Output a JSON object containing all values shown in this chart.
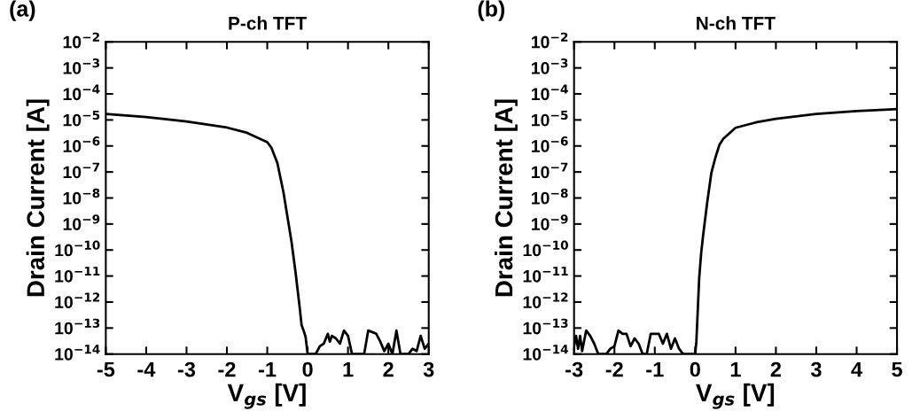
{
  "chart_data": [
    {
      "type": "line",
      "title": "P-ch TFT",
      "xlabel": "V$_{gs}$ [V]",
      "ylabel": "Drain Current [A]",
      "annotations": [
        "(a)"
      ],
      "log": "y",
      "grid": false,
      "marker": "none",
      "line_style": "solid",
      "xlim": [
        -5,
        3
      ],
      "xticks": [
        -5,
        -4,
        -3,
        -2,
        -1,
        0,
        1,
        2,
        3
      ],
      "ylim": [
        1e-14,
        0.01
      ],
      "yticks": [
        {
          "value": 1e-14,
          "label": "10$^{−14}$"
        },
        {
          "value": 1e-13,
          "label": "10$^{−13}$"
        },
        {
          "value": 1e-12,
          "label": "10$^{−12}$"
        },
        {
          "value": 1e-11,
          "label": "10$^{−11}$"
        },
        {
          "value": 1e-10,
          "label": "10$^{−10}$"
        },
        {
          "value": 1e-09,
          "label": "10$^{−9}$"
        },
        {
          "value": 1e-08,
          "label": "10$^{−8}$"
        },
        {
          "value": 1e-07,
          "label": "10$^{−7}$"
        },
        {
          "value": 1e-06,
          "label": "10$^{−6}$"
        },
        {
          "value": 1e-05,
          "label": "10$^{−5}$"
        },
        {
          "value": 0.0001,
          "label": "10$^{−4}$"
        },
        {
          "value": 0.001,
          "label": "10$^{−3}$"
        },
        {
          "value": 0.01,
          "label": "10$^{−2}$"
        }
      ],
      "series": [
        {
          "color": "#000000",
          "x": [
            -5,
            -4,
            -3,
            -2,
            -1.5,
            -1,
            -0.9,
            -0.75,
            -0.6,
            -0.5,
            -0.4,
            -0.3,
            -0.2,
            -0.15,
            -0.1,
            -0.05,
            0,
            0.1,
            0.2,
            0.3,
            0.4,
            0.5,
            0.55,
            0.6,
            0.7,
            0.8,
            0.9,
            1.0,
            1.1,
            1.2,
            1.3,
            1.4,
            1.5,
            1.6,
            1.7,
            1.8,
            1.9,
            2.0,
            2.1,
            2.2,
            2.3,
            2.4,
            2.5,
            2.6,
            2.7,
            2.8,
            2.9,
            3.0
          ],
          "values": [
            1.7e-05,
            1.3e-05,
            8.7e-06,
            5.1e-06,
            3.2e-06,
            1.4e-06,
            8.7e-07,
            2.2e-07,
            1.7e-08,
            1.9e-09,
            2.1e-10,
            1.4e-11,
            6.8e-13,
            1.3e-13,
            8e-14,
            4.5e-14,
            1e-14,
            1e-14,
            1e-14,
            2e-14,
            2.5e-14,
            6e-14,
            3e-14,
            5e-14,
            4e-14,
            2.5e-14,
            8e-14,
            5e-14,
            1e-14,
            1e-14,
            1e-14,
            1e-14,
            8e-14,
            7e-14,
            6e-14,
            3e-14,
            1.3e-14,
            2.5e-14,
            1e-14,
            8e-14,
            1e-14,
            1e-14,
            1e-14,
            1.6e-14,
            1.3e-14,
            5e-14,
            1.6e-14,
            2.5e-14
          ]
        }
      ]
    },
    {
      "type": "line",
      "title": "N-ch TFT",
      "xlabel": "V$_{gs}$ [V]",
      "ylabel": "Drain Current [A]",
      "annotations": [
        "(b)"
      ],
      "log": "y",
      "grid": false,
      "marker": "none",
      "line_style": "solid",
      "xlim": [
        -3,
        5
      ],
      "xticks": [
        -3,
        -2,
        -1,
        0,
        1,
        2,
        3,
        4,
        5
      ],
      "ylim": [
        1e-14,
        0.01
      ],
      "yticks": [
        {
          "value": 1e-14,
          "label": "10$^{−14}$"
        },
        {
          "value": 1e-13,
          "label": "10$^{−13}$"
        },
        {
          "value": 1e-12,
          "label": "10$^{−12}$"
        },
        {
          "value": 1e-11,
          "label": "10$^{−11}$"
        },
        {
          "value": 1e-10,
          "label": "10$^{−10}$"
        },
        {
          "value": 1e-09,
          "label": "10$^{−9}$"
        },
        {
          "value": 1e-08,
          "label": "10$^{−8}$"
        },
        {
          "value": 1e-07,
          "label": "10$^{−7}$"
        },
        {
          "value": 1e-06,
          "label": "10$^{−6}$"
        },
        {
          "value": 1e-05,
          "label": "10$^{−5}$"
        },
        {
          "value": 0.0001,
          "label": "10$^{−4}$"
        },
        {
          "value": 0.001,
          "label": "10$^{−3}$"
        },
        {
          "value": 0.01,
          "label": "10$^{−2}$"
        }
      ],
      "series": [
        {
          "color": "#000000",
          "x": [
            -3,
            -2.95,
            -2.9,
            -2.85,
            -2.8,
            -2.7,
            -2.6,
            -2.5,
            -2.4,
            -2.2,
            -2.1,
            -2.0,
            -1.9,
            -1.8,
            -1.7,
            -1.6,
            -1.5,
            -1.4,
            -1.3,
            -1.2,
            -1.1,
            -1.0,
            -0.9,
            -0.8,
            -0.7,
            -0.6,
            -0.5,
            -0.4,
            -0.3,
            -0.1,
            0,
            0.03,
            0.1,
            0.15,
            0.2,
            0.3,
            0.4,
            0.5,
            0.6,
            0.7,
            1.0,
            1.5,
            2,
            3,
            4,
            5
          ],
          "values": [
            2e-14,
            5e-14,
            1.6e-14,
            5e-14,
            1.3e-14,
            8e-14,
            5e-14,
            2.5e-14,
            1e-14,
            1e-14,
            1.6e-14,
            2e-14,
            8e-14,
            6e-14,
            6e-14,
            2e-14,
            4e-14,
            2.5e-14,
            1e-14,
            1e-14,
            6e-14,
            6e-14,
            6e-14,
            2.5e-14,
            6e-14,
            1.6e-14,
            4e-14,
            1.6e-14,
            1e-14,
            1e-14,
            1e-14,
            3e-14,
            8.5e-12,
            8e-11,
            4e-10,
            7e-09,
            9e-08,
            3.5e-07,
            1.1e-06,
            1.9e-06,
            5e-06,
            8e-06,
            1.1e-05,
            1.7e-05,
            2.2e-05,
            2.6e-05
          ]
        }
      ]
    }
  ]
}
